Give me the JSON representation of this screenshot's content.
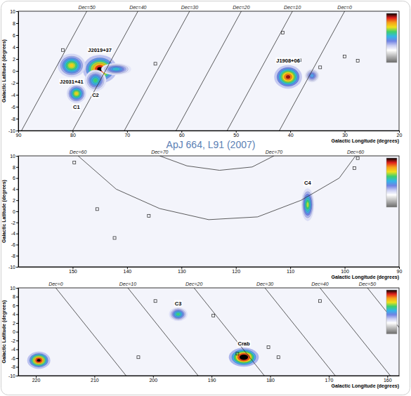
{
  "chart_data": [
    {
      "type": "heatmap",
      "annotation": "ApJ 664, L91 (2007)",
      "xlabel": "Galactic Longitude (degrees)",
      "ylabel": "Galactic Latitude (degrees)",
      "xlim": [
        90,
        20
      ],
      "ylim": [
        -10,
        10
      ],
      "xticks": [
        90,
        80,
        70,
        60,
        50,
        40,
        30,
        20
      ],
      "yticks": [
        -10,
        -8,
        -6,
        -4,
        -2,
        0,
        2,
        4,
        6,
        8,
        10
      ],
      "colorbar": {
        "range": [
          -4,
          12
        ]
      },
      "dec_lines": [
        {
          "label": "Dec=50",
          "l": [
            77.4,
            89.4
          ],
          "b": [
            10,
            -10
          ]
        },
        {
          "label": "Dec=40",
          "l": [
            68,
            80
          ],
          "b": [
            10,
            -10
          ]
        },
        {
          "label": "Dec=30",
          "l": [
            58.5,
            70.5
          ],
          "b": [
            10,
            -10
          ]
        },
        {
          "label": "Dec=20",
          "l": [
            49,
            61
          ],
          "b": [
            10,
            -10
          ]
        },
        {
          "label": "Dec=10",
          "l": [
            39.6,
            51.6
          ],
          "b": [
            10,
            -10
          ]
        },
        {
          "label": "Dec=0",
          "l": [
            30,
            42
          ],
          "b": [
            10,
            -10
          ]
        }
      ],
      "sources": [
        {
          "name": "J2019+37",
          "l": 75.0,
          "b": 0.3,
          "peak": 12,
          "size_l": 1.6,
          "size_b": 1.2
        },
        {
          "name": "C2",
          "l": 75.8,
          "b": -1.6,
          "peak": 6,
          "size_l": 1.0,
          "size_b": 0.9
        },
        {
          "name": "J2031+41",
          "l": 80.2,
          "b": 0.9,
          "peak": 8,
          "size_l": 1.3,
          "size_b": 1.0
        },
        {
          "name": "C1",
          "l": 79.3,
          "b": -3.8,
          "peak": 8,
          "size_l": 0.9,
          "size_b": 0.8
        },
        {
          "l": 72.0,
          "b": 0.3,
          "peak": 5,
          "size_l": 1.4,
          "size_b": 0.5
        },
        {
          "name": "J1908+06",
          "l": 40.4,
          "b": -1.0,
          "peak": 11,
          "size_l": 1.3,
          "size_b": 1.0
        },
        {
          "l": 36.0,
          "b": -0.8,
          "peak": 4,
          "size_l": 0.7,
          "size_b": 0.6
        }
      ],
      "markers": {
        "marker": "square",
        "l": [
          81.8,
          64.8,
          41.4,
          38.3,
          34.5,
          30.0,
          27.6
        ],
        "b": [
          3.5,
          1.2,
          6.4,
          1.8,
          0.6,
          2.4,
          1.7
        ]
      }
    },
    {
      "type": "heatmap",
      "xlabel": "Galactic Longitude (degrees)",
      "ylabel": "Galactic Latitude (degrees)",
      "xlim": [
        160,
        90
      ],
      "ylim": [
        -10,
        10
      ],
      "xticks": [
        150,
        140,
        130,
        120,
        110,
        100,
        90
      ],
      "yticks": [
        -10,
        -8,
        -6,
        -4,
        -2,
        0,
        2,
        4,
        6,
        8,
        10
      ],
      "colorbar": {
        "range": [
          -4,
          12
        ]
      },
      "dec_lines": [
        {
          "label": "Dec=60",
          "l": [
            149,
            142,
            134,
            125,
            116,
            108,
            101,
            98
          ],
          "b": [
            10,
            4,
            0.5,
            -1.5,
            -1,
            2,
            6,
            10
          ]
        },
        {
          "label": "Dec=70",
          "l": [
            134,
            129,
            123,
            117,
            113
          ],
          "b": [
            10,
            8.2,
            7.4,
            8,
            10
          ]
        }
      ],
      "sources": [
        {
          "name": "C4",
          "l": 106.8,
          "b": 1.2,
          "peak": 7,
          "size_l": 0.6,
          "size_b": 1.5
        }
      ],
      "markers": {
        "marker": "square",
        "l": [
          149.7,
          136.0,
          145.5,
          142.3,
          97.6,
          98.2
        ],
        "b": [
          8.8,
          -0.8,
          0.4,
          -4.8,
          9.6,
          7.8
        ]
      }
    },
    {
      "type": "heatmap",
      "xlabel": "Galactic Longitude (degrees)",
      "ylabel": "Galactic Latitude (degrees)",
      "xlim": [
        223,
        158
      ],
      "ylim": [
        -10,
        10
      ],
      "xticks": [
        220,
        210,
        200,
        190,
        180,
        170,
        160
      ],
      "yticks": [
        -10,
        -8,
        -6,
        -4,
        -2,
        0,
        2,
        4,
        6,
        8,
        10
      ],
      "colorbar": {
        "range": [
          -4,
          12
        ]
      },
      "dec_lines": [
        {
          "label": "Dec=0",
          "l": [
            216.6,
            204.6
          ],
          "b": [
            10,
            -10
          ]
        },
        {
          "label": "Dec=10",
          "l": [
            204.3,
            192.3
          ],
          "b": [
            10,
            -10
          ]
        },
        {
          "label": "Dec=20",
          "l": [
            193,
            181
          ],
          "b": [
            10,
            -10
          ]
        },
        {
          "label": "Dec=30",
          "l": [
            180.9,
            168.9
          ],
          "b": [
            10,
            -10
          ]
        },
        {
          "label": "Dec=40",
          "l": [
            171.5,
            159.5
          ],
          "b": [
            10,
            -10
          ]
        },
        {
          "label": "Dec=50",
          "l": [
            163.4,
            151.4
          ],
          "b": [
            10,
            -10
          ]
        }
      ],
      "sources": [
        {
          "name": "C3",
          "l": 195.7,
          "b": 4.0,
          "peak": 6,
          "size_l": 0.8,
          "size_b": 0.8
        },
        {
          "name": "Crab",
          "l": 184.5,
          "b": -5.8,
          "peak": 14,
          "size_l": 1.3,
          "size_b": 1.1
        },
        {
          "l": 219.5,
          "b": -6.5,
          "peak": 12,
          "size_l": 1.0,
          "size_b": 1.0
        }
      ],
      "markers": {
        "marker": "square",
        "l": [
          199.6,
          189.7,
          180.3,
          171.5,
          202.5,
          185.6,
          178.6
        ],
        "b": [
          7.0,
          3.7,
          -3.5,
          7.0,
          -5.8,
          -5.0,
          -5.8
        ]
      }
    }
  ]
}
